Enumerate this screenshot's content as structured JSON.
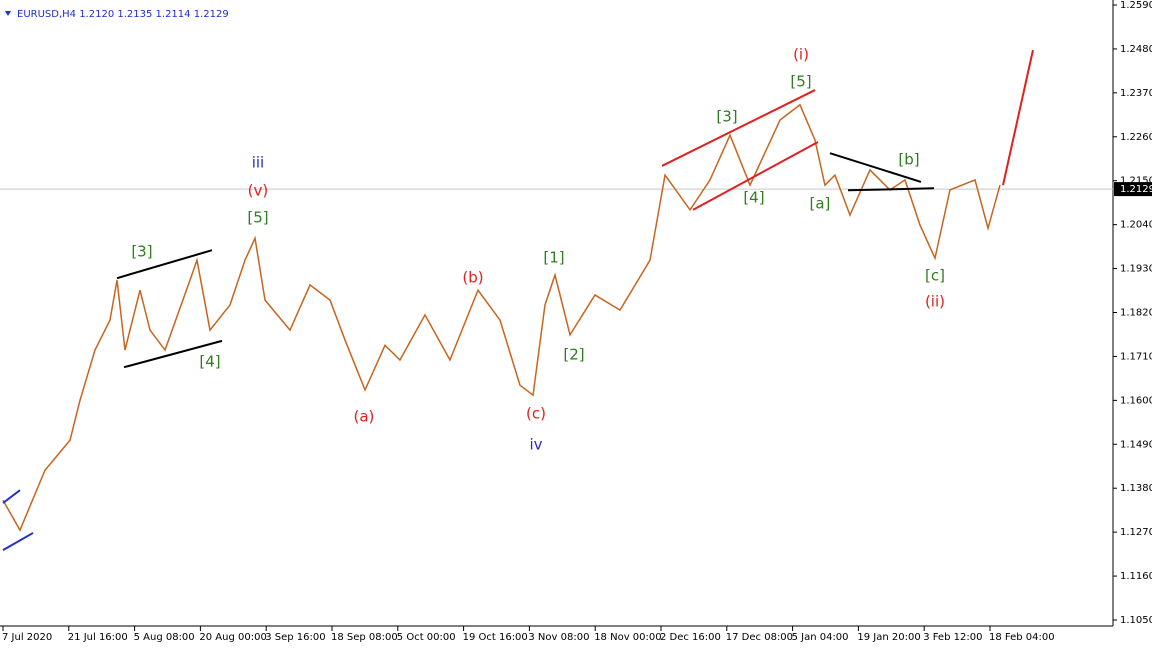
{
  "chart_data": {
    "type": "line",
    "title": "EURUSD,H4  1.2120 1.2135 1.2114 1.2129",
    "color": "#c8641e",
    "x": [
      0,
      0.258,
      0.638,
      1.018,
      1.17,
      1.398,
      1.626,
      1.733,
      1.854,
      2.082,
      2.234,
      2.462,
      2.842,
      2.948,
      3.146,
      3.45,
      3.678,
      3.83,
      3.982,
      4.362,
      4.666,
      4.97,
      5.198,
      5.502,
      5.806,
      6.033,
      6.413,
      6.793,
      7.219,
      7.553,
      7.857,
      8.055,
      8.237,
      8.389,
      8.617,
      8.997,
      9.377,
      9.833,
      10.061,
      10.441,
      10.745,
      11.049,
      11.353,
      11.809,
      12.112,
      12.34,
      12.492,
      12.644,
      12.872,
      13.176,
      13.48,
      13.708,
      13.936,
      14.164,
      14.392,
      14.772,
      14.97,
      15.152
    ],
    "values": [
      1.135,
      1.1275,
      1.1425,
      1.15,
      1.16,
      1.1726,
      1.1801,
      1.1901,
      1.1726,
      1.1876,
      1.1776,
      1.1726,
      1.1901,
      1.1951,
      1.1776,
      1.1839,
      1.1951,
      1.2006,
      1.1851,
      1.1776,
      1.1889,
      1.1851,
      1.1751,
      1.1626,
      1.1738,
      1.1701,
      1.1814,
      1.1701,
      1.1876,
      1.1801,
      1.1638,
      1.1613,
      1.1839,
      1.1914,
      1.1764,
      1.1864,
      1.1826,
      1.1951,
      1.2164,
      1.2077,
      1.2152,
      1.2264,
      1.2139,
      1.2302,
      1.234,
      1.2252,
      1.2139,
      1.2164,
      1.2064,
      1.2177,
      1.2127,
      1.2152,
      1.2039,
      1.1956,
      1.2127,
      1.2152,
      1.2031,
      1.2139
    ],
    "xlim": [
      0,
      16.45
    ],
    "xticks": [
      {
        "value": 0,
        "label": "7 Jul 2020"
      },
      {
        "value": 1,
        "label": "21 Jul 16:00"
      },
      {
        "value": 2,
        "label": "5 Aug 08:00"
      },
      {
        "value": 3,
        "label": "20 Aug 00:00"
      },
      {
        "value": 4,
        "label": "3 Sep 16:00"
      },
      {
        "value": 5,
        "label": "18 Sep 08:00"
      },
      {
        "value": 6,
        "label": "5 Oct 00:00"
      },
      {
        "value": 7,
        "label": "19 Oct 16:00"
      },
      {
        "value": 8,
        "label": "3 Nov 08:00"
      },
      {
        "value": 9,
        "label": "18 Nov 00:00"
      },
      {
        "value": 10,
        "label": "2 Dec 16:00"
      },
      {
        "value": 11,
        "label": "17 Dec 08:00"
      },
      {
        "value": 12,
        "label": "5 Jan 04:00"
      },
      {
        "value": 13,
        "label": "19 Jan 20:00"
      },
      {
        "value": 14,
        "label": "3 Feb 12:00"
      },
      {
        "value": 15,
        "label": "18 Feb 04:00"
      }
    ],
    "ylim": [
      1.105,
      1.259
    ],
    "yticks": [
      {
        "value": 1.259,
        "label": "1.2590"
      },
      {
        "value": 1.248,
        "label": "1.2480"
      },
      {
        "value": 1.237,
        "label": "1.2370"
      },
      {
        "value": 1.226,
        "label": "1.2260"
      },
      {
        "value": 1.215,
        "label": "1.2150"
      },
      {
        "value": 1.204,
        "label": "1.2040"
      },
      {
        "value": 1.193,
        "label": "1.1930"
      },
      {
        "value": 1.182,
        "label": "1.1820"
      },
      {
        "value": 1.171,
        "label": "1.1710"
      },
      {
        "value": 1.16,
        "label": "1.1600"
      },
      {
        "value": 1.149,
        "label": "1.1490"
      },
      {
        "value": 1.138,
        "label": "1.1380"
      },
      {
        "value": 1.127,
        "label": "1.1270"
      },
      {
        "value": 1.116,
        "label": "1.1160"
      },
      {
        "value": 1.105,
        "label": "1.1050"
      }
    ],
    "current_price": {
      "value": 1.2129,
      "label": "1.2129"
    },
    "annotations": [
      {
        "text": "iii",
        "color": "#1f2fc8",
        "x": 3.875,
        "y": 1.2194
      },
      {
        "text": "(v)",
        "color": "#e0201e",
        "x": 3.875,
        "y": 1.2124
      },
      {
        "text": "[5]",
        "color": "#2e7d1e",
        "x": 3.875,
        "y": 1.2057
      },
      {
        "text": "[3]",
        "color": "#2e7d1e",
        "x": 2.112,
        "y": 1.1971
      },
      {
        "text": "[4]",
        "color": "#2e7d1e",
        "x": 3.146,
        "y": 1.1696
      },
      {
        "text": "(a)",
        "color": "#e0201e",
        "x": 5.486,
        "y": 1.1558
      },
      {
        "text": "(b)",
        "color": "#e0201e",
        "x": 7.143,
        "y": 1.1906
      },
      {
        "text": "[1]",
        "color": "#2e7d1e",
        "x": 8.374,
        "y": 1.1956
      },
      {
        "text": "[2]",
        "color": "#2e7d1e",
        "x": 8.678,
        "y": 1.1713
      },
      {
        "text": "(c)",
        "color": "#e0201e",
        "x": 8.1,
        "y": 1.1566
      },
      {
        "text": "iv",
        "color": "#1f2fc8",
        "x": 8.1,
        "y": 1.1488
      },
      {
        "text": "[3]",
        "color": "#2e7d1e",
        "x": 11.003,
        "y": 1.231
      },
      {
        "text": "(i)",
        "color": "#e0201e",
        "x": 12.128,
        "y": 1.2465
      },
      {
        "text": "[5]",
        "color": "#2e7d1e",
        "x": 12.128,
        "y": 1.2397
      },
      {
        "text": "[4]",
        "color": "#2e7d1e",
        "x": 11.413,
        "y": 1.2107
      },
      {
        "text": "[a]",
        "color": "#2e7d1e",
        "x": 12.416,
        "y": 1.2092
      },
      {
        "text": "[b]",
        "color": "#2e7d1e",
        "x": 13.769,
        "y": 1.2202
      },
      {
        "text": "[c]",
        "color": "#2e7d1e",
        "x": 14.164,
        "y": 1.1911
      },
      {
        "text": "(ii)",
        "color": "#e0201e",
        "x": 14.164,
        "y": 1.1846
      }
    ],
    "lines": [
      {
        "color": "#1f2fc8",
        "x": [
          0,
          0.258
        ],
        "y": [
          1.1343,
          1.1375
        ]
      },
      {
        "color": "#1f2fc8",
        "x": [
          0,
          0.456
        ],
        "y": [
          1.1225,
          1.1268
        ]
      },
      {
        "color": "#000000",
        "x": [
          1.733,
          3.176
        ],
        "y": [
          1.1906,
          1.1976
        ]
      },
      {
        "color": "#000000",
        "x": [
          1.839,
          3.328
        ],
        "y": [
          1.1683,
          1.1749
        ]
      },
      {
        "color": "#e0201e",
        "x": [
          10.015,
          12.34
        ],
        "y": [
          1.2187,
          1.2377
        ]
      },
      {
        "color": "#e0201e",
        "x": [
          10.486,
          12.386
        ],
        "y": [
          1.2077,
          1.2247
        ]
      },
      {
        "color": "#000000",
        "x": [
          12.568,
          13.951
        ],
        "y": [
          1.2219,
          1.2147
        ]
      },
      {
        "color": "#000000",
        "x": [
          12.842,
          14.149
        ],
        "y": [
          1.2126,
          1.2131
        ]
      },
      {
        "color": "#e0201e",
        "x": [
          15.198,
          15.653
        ],
        "y": [
          1.2139,
          1.2477
        ]
      }
    ]
  }
}
